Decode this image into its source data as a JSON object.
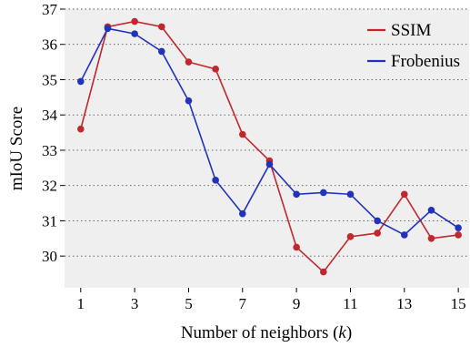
{
  "chart_data": {
    "type": "line",
    "xlabel": "Number of neighbors (",
    "xlabel_var": "k",
    "xlabel_end": ")",
    "ylabel": "mIoU Score",
    "xlim": [
      0.4,
      15.4
    ],
    "ylim": [
      29.1,
      37.0
    ],
    "xticks": [
      1,
      3,
      5,
      7,
      9,
      11,
      13,
      15
    ],
    "yticks": [
      30,
      31,
      32,
      33,
      34,
      35,
      36,
      37
    ],
    "grid": "horizontal-dotted",
    "legend_position": "top-right",
    "x": [
      1,
      2,
      3,
      4,
      5,
      6,
      7,
      8,
      9,
      10,
      11,
      12,
      13,
      14,
      15
    ],
    "series": [
      {
        "name": "SSIM",
        "color": "#c0282d",
        "values": [
          33.6,
          36.5,
          36.65,
          36.5,
          35.5,
          35.3,
          33.45,
          32.7,
          30.25,
          29.55,
          30.55,
          30.65,
          31.75,
          30.5,
          30.6
        ]
      },
      {
        "name": "Frobenius",
        "color": "#2233bb",
        "values": [
          34.95,
          36.45,
          36.3,
          35.8,
          34.4,
          32.15,
          31.2,
          32.6,
          31.75,
          31.8,
          31.75,
          31.0,
          30.6,
          31.3,
          30.8
        ]
      }
    ]
  }
}
